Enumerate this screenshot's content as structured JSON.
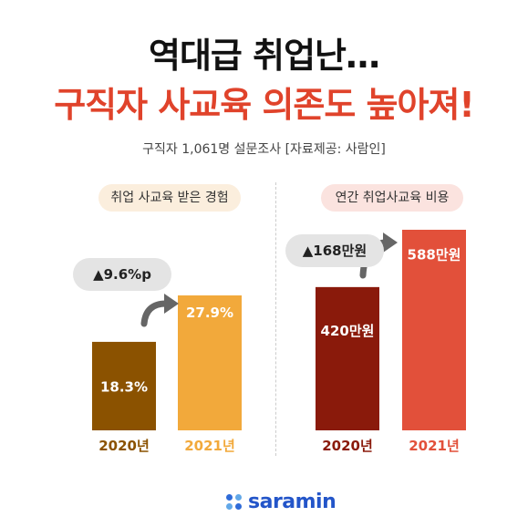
{
  "header": {
    "title_line1": "역대급 취업난…",
    "title_line2": "구직자 사교육 의존도 높아져!",
    "subtitle": "구직자 1,061명 설문조사 [자료제공: 사람인]"
  },
  "colors": {
    "title_accent": "#e0432b",
    "left_2020": "#8b5200",
    "left_2021": "#f2a93b",
    "right_2020": "#8a1a0b",
    "right_2021": "#e2503a",
    "logo": "#2355c9"
  },
  "chart_data": [
    {
      "type": "bar",
      "title": "취업 사교육 받은 경험",
      "categories": [
        "2020년",
        "2021년"
      ],
      "values": [
        18.3,
        27.9
      ],
      "value_labels": [
        "18.3%",
        "27.9%"
      ],
      "annotation": "▲9.6%p"
    },
    {
      "type": "bar",
      "title": "연간 취업사교육 비용",
      "categories": [
        "2020년",
        "2021년"
      ],
      "values": [
        420,
        588
      ],
      "value_labels": [
        "420만원",
        "588만원"
      ],
      "annotation": "▲168만원"
    }
  ],
  "footer": {
    "logo_text": "saramin"
  }
}
